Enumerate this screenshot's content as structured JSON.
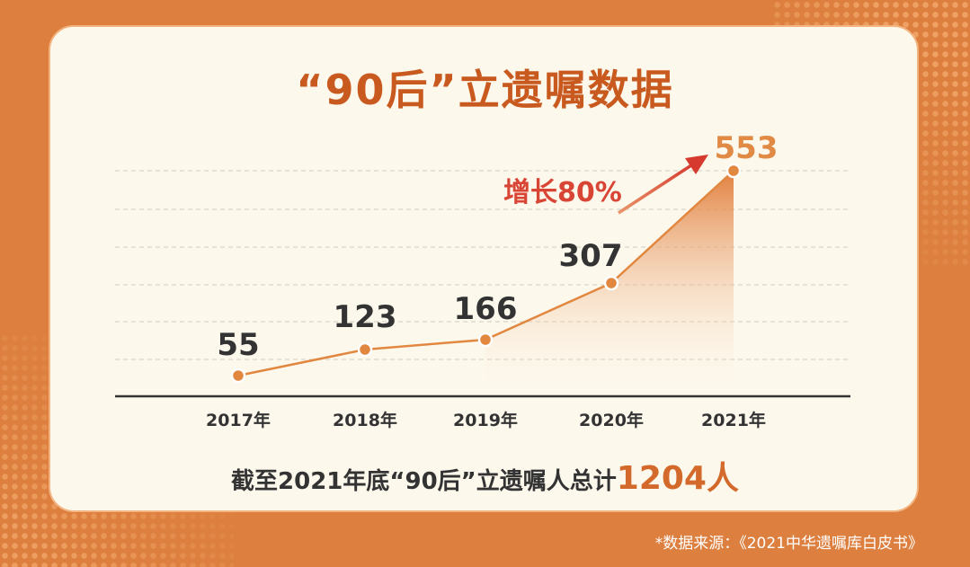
{
  "colors": {
    "background": "#dc7f3f",
    "card": "#fdf8ec",
    "title": "#c95a1f",
    "line": "#e1873f",
    "highlight_value": "#e08a45",
    "growth_arrow": "#d94534",
    "axis": "#333333"
  },
  "chart_data": {
    "type": "area",
    "title": "“90后”立遗嘱数据",
    "categories": [
      "2017年",
      "2018年",
      "2019年",
      "2020年",
      "2021年"
    ],
    "values": [
      55,
      123,
      166,
      307,
      553
    ],
    "value_labels": [
      "55",
      "123",
      "166",
      "307",
      "553"
    ],
    "ylim": [
      0,
      600
    ],
    "grid": true,
    "annotation": "增长80%"
  },
  "summary": {
    "prefix": "截至2021年底“90后”立遗嘱人总计",
    "total": "1204人"
  },
  "source": "*数据来源：《2021中华遗嘱库白皮书》"
}
